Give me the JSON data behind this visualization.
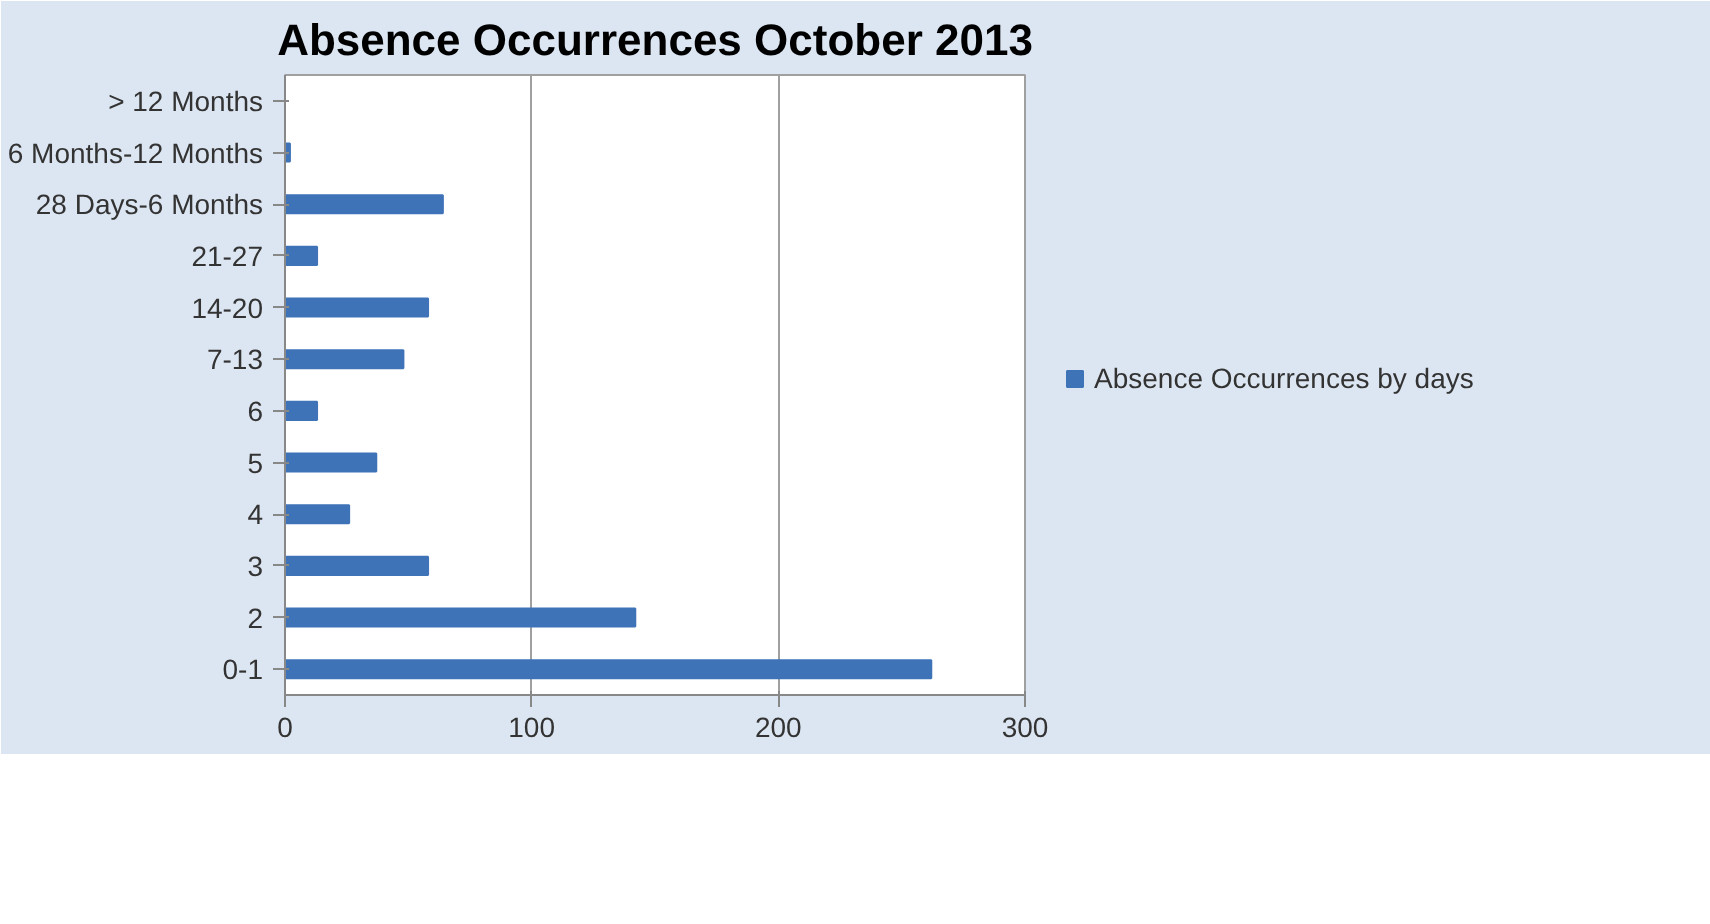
{
  "chart_data": {
    "type": "bar",
    "orientation": "horizontal",
    "title": "Absence Occurrences October 2013",
    "categories": [
      "> 12 Months",
      "6 Months-12 Months",
      "28 Days-6 Months",
      "21-27",
      "14-20",
      "7-13",
      "6",
      "5",
      "4",
      "3",
      "2",
      "0-1"
    ],
    "series": [
      {
        "name": "Absence Occurrences by days",
        "color": "#3f73b8",
        "values": [
          0,
          2,
          64,
          13,
          58,
          48,
          13,
          37,
          26,
          58,
          142,
          262
        ]
      }
    ],
    "xlim": [
      0,
      300
    ],
    "xticks": [
      0,
      100,
      200,
      300
    ],
    "grid": "x",
    "legend": "right"
  }
}
